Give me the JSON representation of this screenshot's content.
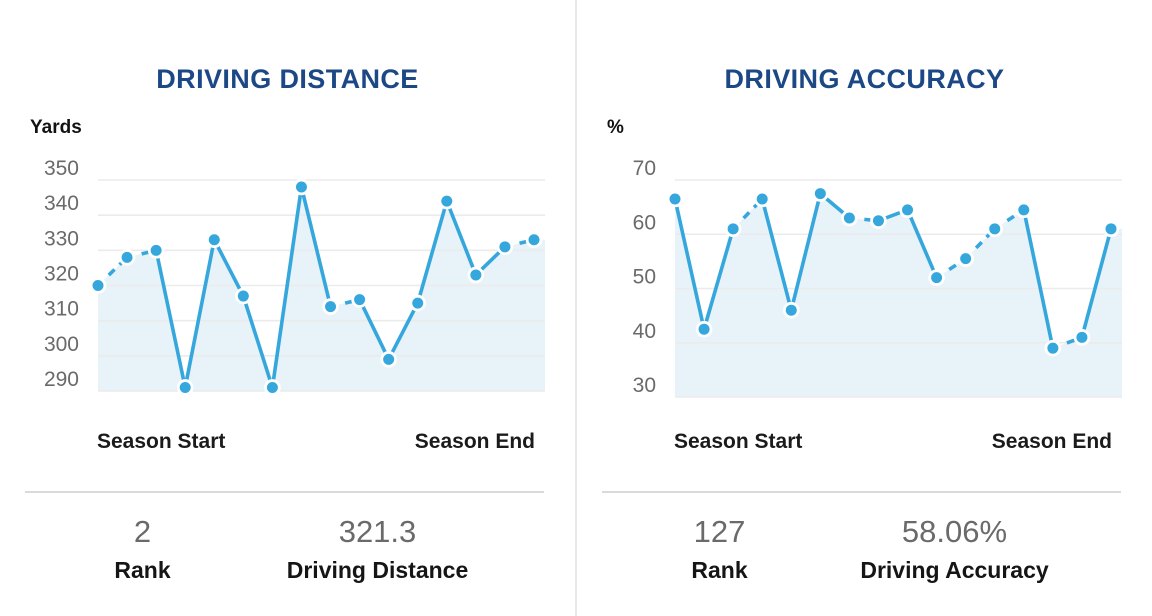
{
  "colors": {
    "title": "#1c4886",
    "line": "#35a7dd",
    "area_fill": "#e8f2f9",
    "grid": "#ebebeb",
    "axis_text": "#6a6a6a",
    "stat_value": "#6a6a6a",
    "stat_label": "#151515",
    "divider": "#e7e7e7",
    "dot_ring": "#ffffff"
  },
  "chart_data": [
    {
      "type": "line",
      "title": "DRIVING DISTANCE",
      "ylabel": "Yards",
      "x_axis_labels": [
        "Season Start",
        "Season End"
      ],
      "y_ticks": [
        350,
        340,
        330,
        320,
        310,
        300,
        290
      ],
      "ylim": [
        290,
        350
      ],
      "values": [
        320,
        328,
        330,
        291,
        333,
        317,
        291,
        348,
        314,
        316,
        299,
        315,
        344,
        323,
        331,
        333
      ],
      "dashed_segments": [
        0,
        1,
        8,
        14
      ],
      "grid": true,
      "area_fill": true,
      "legend": "none"
    },
    {
      "type": "line",
      "title": "DRIVING ACCURACY",
      "ylabel": "%",
      "x_axis_labels": [
        "Season Start",
        "Season End"
      ],
      "y_ticks": [
        70,
        60,
        50,
        40,
        30
      ],
      "ylim": [
        30,
        70
      ],
      "values": [
        66.5,
        42.5,
        61,
        66.5,
        46,
        67.5,
        63,
        62.5,
        64.5,
        52,
        55.5,
        61,
        64.5,
        39,
        41,
        61
      ],
      "dashed_segments": [
        2,
        6,
        9,
        10,
        11,
        13
      ],
      "grid": true,
      "area_fill": true,
      "legend": "none"
    }
  ],
  "cards": [
    {
      "stats": [
        {
          "value": "2",
          "label": "Rank"
        },
        {
          "value": "321.3",
          "label": "Driving Distance"
        }
      ]
    },
    {
      "stats": [
        {
          "value": "127",
          "label": "Rank"
        },
        {
          "value": "58.06%",
          "label": "Driving Accuracy"
        }
      ]
    }
  ]
}
